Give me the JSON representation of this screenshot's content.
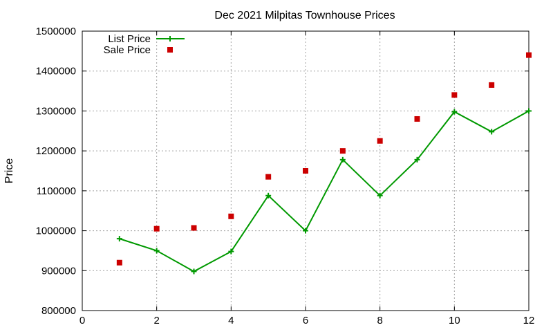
{
  "chart_data": {
    "type": "line",
    "title": "Dec 2021 Milpitas Townhouse Prices",
    "xlabel": "",
    "ylabel": "Price",
    "xlim": [
      0,
      12
    ],
    "ylim": [
      800000,
      1500000
    ],
    "xticks": [
      0,
      2,
      4,
      6,
      8,
      10,
      12
    ],
    "yticks": [
      800000,
      900000,
      1000000,
      1100000,
      1200000,
      1300000,
      1400000,
      1500000
    ],
    "grid": true,
    "legend_position": "top-left",
    "x": [
      1,
      2,
      3,
      4,
      5,
      6,
      7,
      8,
      9,
      10,
      11,
      12
    ],
    "series": [
      {
        "name": "List Price",
        "style": "lines+points",
        "marker": "plus",
        "color": "#009900",
        "values": [
          980000,
          950000,
          898000,
          948000,
          1088000,
          1000000,
          1178000,
          1088000,
          1178000,
          1298000,
          1248000,
          1300000
        ]
      },
      {
        "name": "Sale Price",
        "style": "points",
        "marker": "square",
        "color": "#cc0000",
        "values": [
          920000,
          1005000,
          1007000,
          1036000,
          1135000,
          1150000,
          1200000,
          1225000,
          1280000,
          1340000,
          1365000,
          1440000
        ]
      }
    ]
  }
}
